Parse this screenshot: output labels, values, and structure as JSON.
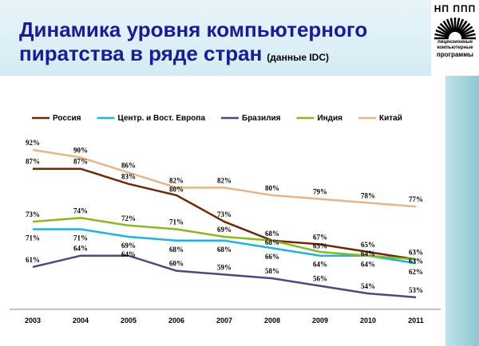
{
  "title": "Динамика уровня компьютерного пиратства в ряде стран",
  "subtitle": "(данные IDC)",
  "logo": {
    "name": "НП ППП",
    "lines": [
      "лицензионные",
      "компьютерные",
      "программы"
    ]
  },
  "chart_data": {
    "type": "line",
    "categories": [
      "2003",
      "2004",
      "2005",
      "2006",
      "2007",
      "2008",
      "2009",
      "2010",
      "2011"
    ],
    "ylim": [
      50,
      95
    ],
    "legend_position": "top",
    "series": [
      {
        "name": "Россия",
        "color": "#6b2a0a",
        "values": [
          87,
          87,
          83,
          80,
          73,
          68,
          67,
          65,
          63
        ]
      },
      {
        "name": "Центр. и Вост. Европа",
        "color": "#1fb4e0",
        "values": [
          71,
          71,
          69,
          68,
          68,
          66,
          64,
          64,
          62
        ]
      },
      {
        "name": "Бразилия",
        "color": "#4a4a7a",
        "values": [
          61,
          64,
          64,
          60,
          59,
          58,
          56,
          54,
          53
        ]
      },
      {
        "name": "Индия",
        "color": "#8ab820",
        "values": [
          73,
          74,
          72,
          71,
          69,
          68,
          65,
          64,
          63
        ]
      },
      {
        "name": "Китай",
        "color": "#e8b48a",
        "values": [
          92,
          90,
          86,
          82,
          82,
          80,
          79,
          78,
          77
        ]
      }
    ]
  }
}
